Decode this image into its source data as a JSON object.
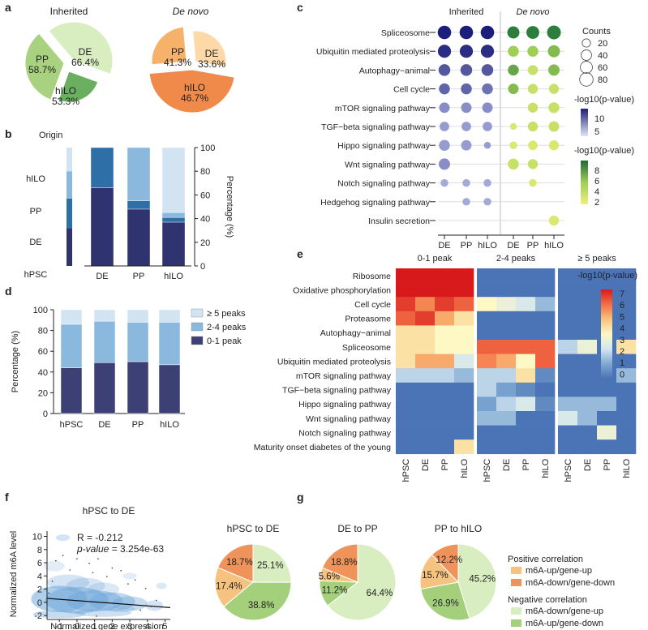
{
  "panel_labels": [
    "a",
    "b",
    "c",
    "d",
    "e",
    "f",
    "g"
  ],
  "colors": {
    "inherited_scale": [
      "#bcc4e8",
      "#1c1f78"
    ],
    "denovo_scale": [
      "#e6ec7a",
      "#1a6b36"
    ],
    "heat": [
      "#4a74b5",
      "#7fa8d2",
      "#d3e6f0",
      "#fdf8c4",
      "#fbc27a",
      "#f36e45",
      "#d7191c"
    ],
    "stack_dark": "#36396e",
    "stack_mid": "#8bb8dd",
    "stack_light": "#d2e3f1"
  },
  "chart_data": [
    {
      "id": "a",
      "type": "pie",
      "groups": [
        {
          "title": "Inherited",
          "italic": false,
          "slices": [
            {
              "label": "PP",
              "value_label": "58.7%",
              "color": "#a8d27f"
            },
            {
              "label": "DE",
              "value_label": "66.4%",
              "color": "#d9eec0"
            },
            {
              "label": "hILO",
              "value_label": "53.3%",
              "color": "#6aae5f"
            }
          ]
        },
        {
          "title": "De novo",
          "italic": true,
          "slices": [
            {
              "label": "PP",
              "value_label": "41.3%",
              "color": "#f6b26b"
            },
            {
              "label": "DE",
              "value_label": "33.6%",
              "color": "#fdd9a8"
            },
            {
              "label": "hILO",
              "value_label": "46.7%",
              "color": "#ef8a4a"
            }
          ]
        }
      ]
    },
    {
      "id": "b",
      "type": "bar",
      "stacked": true,
      "categories": [
        "DE",
        "PP",
        "hILO"
      ],
      "series": [
        {
          "name": "hPSC",
          "color": "#2f3370",
          "values": [
            66,
            48,
            37
          ]
        },
        {
          "name": "DE",
          "color": "#2e6fa8",
          "values": [
            34,
            7,
            4
          ]
        },
        {
          "name": "PP",
          "color": "#8bb8dd",
          "values": [
            0,
            45,
            4
          ]
        },
        {
          "name": "hILO",
          "color": "#d2e3f1",
          "values": [
            0,
            0,
            55
          ]
        }
      ],
      "origin_bar": {
        "label": "Origin",
        "values": [
          20,
          23,
          25,
          32
        ]
      },
      "ylabel": "Percentage (%)",
      "ylim": [
        0,
        100
      ],
      "yticks": [
        0,
        20,
        40,
        60,
        80,
        100
      ],
      "origin_labels": [
        "hILO",
        "PP",
        "DE",
        "hPSC"
      ]
    },
    {
      "id": "c",
      "type": "scatter",
      "subtype": "dot-matrix",
      "columns": [
        "DE",
        "PP",
        "hILO",
        "DE",
        "PP",
        "hILO"
      ],
      "group_titles": [
        "Inherited",
        "De novo"
      ],
      "rows": [
        "Spliceosome",
        "Ubiquitin mediated proteolysis",
        "Autophagy−animal",
        "Cell cycle",
        "mTOR signaling pathway",
        "TGF−beta signaling pathway",
        "Hippo signaling pathway",
        "Wnt signaling pathway",
        "Notch signaling pathway",
        "Hedgehog signaling pathway",
        "Insulin secretion"
      ],
      "counts": [
        [
          80,
          80,
          80,
          60,
          70,
          85
        ],
        [
          75,
          75,
          75,
          45,
          45,
          60
        ],
        [
          55,
          55,
          55,
          45,
          35,
          50
        ],
        [
          45,
          45,
          45,
          40,
          35,
          35
        ],
        [
          40,
          40,
          40,
          0,
          35,
          45
        ],
        [
          30,
          30,
          30,
          10,
          35,
          40
        ],
        [
          45,
          40,
          10,
          15,
          30,
          35
        ],
        [
          50,
          0,
          0,
          45,
          35,
          0
        ],
        [
          15,
          15,
          15,
          0,
          15,
          0
        ],
        [
          0,
          15,
          15,
          0,
          0,
          0
        ],
        [
          0,
          0,
          0,
          0,
          0,
          35
        ]
      ],
      "pvals": [
        [
          12,
          12,
          12,
          9,
          9,
          9
        ],
        [
          11,
          11,
          11,
          5,
          5,
          6
        ],
        [
          8,
          8,
          8,
          7,
          3,
          6
        ],
        [
          7,
          7,
          6,
          6,
          3,
          3
        ],
        [
          4,
          4,
          4,
          0,
          3,
          3
        ],
        [
          3,
          3,
          3,
          2,
          3,
          3
        ],
        [
          3,
          3,
          3,
          2,
          2,
          2
        ],
        [
          4,
          0,
          0,
          3,
          3,
          0
        ],
        [
          2,
          2,
          2,
          0,
          2,
          0
        ],
        [
          0,
          2,
          2,
          0,
          0,
          0
        ],
        [
          0,
          0,
          0,
          0,
          0,
          2
        ]
      ],
      "size_legend": {
        "title": "Counts",
        "values": [
          20,
          40,
          60,
          80
        ]
      },
      "color_legend_inherited": {
        "title": "-log10(p-value)",
        "ticks": [
          10,
          5
        ]
      },
      "color_legend_denovo": {
        "title": "-log10(p-value)",
        "ticks": [
          8,
          6,
          4,
          2
        ]
      }
    },
    {
      "id": "d",
      "type": "bar",
      "stacked": true,
      "categories": [
        "hPSC",
        "DE",
        "PP",
        "hILO"
      ],
      "series": [
        {
          "name": "0-1 peak",
          "color": "#3d4075",
          "values": [
            44,
            49,
            50,
            47
          ]
        },
        {
          "name": "2-4 peaks",
          "color": "#8bb8dd",
          "values": [
            42,
            40,
            38,
            41
          ]
        },
        {
          "name": "≥ 5 peaks",
          "color": "#d2e3f1",
          "values": [
            14,
            11,
            12,
            12
          ]
        }
      ],
      "ylabel": "Percentage (%)",
      "ylim": [
        0,
        100
      ],
      "yticks": [
        0,
        20,
        40,
        60,
        80,
        100
      ]
    },
    {
      "id": "e",
      "type": "heatmap",
      "rows": [
        "Ribosome",
        "Oxidative phosphorylation",
        "Cell cycle",
        "Proteasome",
        "Autophagy−animal",
        "Spliceosome",
        "Ubiquitin mediated proteolysis",
        "mTOR signaling pathway",
        "TGF−beta signaling pathway",
        "Hippo signaling pathway",
        "Wnt signaling pathway",
        "Notch signaling pathway",
        "Maturity onset diabetes of the young"
      ],
      "column_groups": [
        "0-1 peak",
        "2-4 peaks",
        "≥ 5 peaks"
      ],
      "columns": [
        "hPSC",
        "DE",
        "PP",
        "hILO"
      ],
      "values": [
        [
          7,
          7,
          7,
          7,
          0,
          0,
          0,
          0,
          0,
          0,
          0,
          0
        ],
        [
          7,
          7,
          7,
          7,
          0,
          0,
          0,
          0,
          0,
          0,
          0,
          0
        ],
        [
          6.5,
          5.5,
          6.5,
          6,
          3.5,
          3,
          2.5,
          1.5,
          0,
          0,
          0,
          0
        ],
        [
          6,
          6.5,
          5,
          4,
          0,
          0,
          0,
          0,
          0,
          0,
          0,
          0
        ],
        [
          4,
          4,
          3.5,
          3.5,
          0,
          0,
          0,
          0,
          0,
          0,
          0,
          0
        ],
        [
          4,
          4,
          3.5,
          3.5,
          6,
          6,
          6,
          6,
          2,
          3,
          0,
          4
        ],
        [
          4,
          5,
          5,
          2.5,
          5.5,
          5,
          3.5,
          6,
          0,
          0,
          0,
          0
        ],
        [
          2,
          2,
          2,
          1.5,
          2,
          2,
          4,
          0.5,
          0,
          0,
          0,
          1.5
        ],
        [
          0,
          0,
          0,
          0,
          2,
          1,
          0.5,
          0,
          0,
          0,
          0,
          0
        ],
        [
          0,
          0,
          0,
          0,
          1,
          2,
          2.5,
          0.5,
          1.5,
          1.5,
          1.5,
          0
        ],
        [
          0,
          0,
          0,
          0,
          1.5,
          1.5,
          0,
          0,
          2.5,
          1.5,
          0,
          0
        ],
        [
          0,
          0,
          0,
          0,
          0,
          0,
          0,
          0,
          0,
          0,
          3,
          0
        ],
        [
          0,
          0,
          0,
          4,
          0,
          0,
          0,
          0,
          0,
          0,
          0,
          0
        ]
      ],
      "legend_title": "-log10(p-value)",
      "legend_ticks": [
        7,
        6,
        5,
        4,
        3,
        2,
        1,
        0
      ]
    },
    {
      "id": "f",
      "type": "scatter",
      "title": "hPSC to DE",
      "xlabel": "Normalized gene expression",
      "ylabel": "Normalized m6A level",
      "xlim": [
        -1.7,
        5.3
      ],
      "ylim": [
        -2.6,
        10.8
      ],
      "xticks": [
        -1,
        0,
        1,
        2,
        3,
        4,
        5
      ],
      "yticks": [
        -2,
        0,
        2,
        4,
        6,
        8,
        10
      ],
      "annotation_r": "R = -0.212",
      "annotation_p": "p-value = 3.254e-63",
      "fit_line": [
        [
          -1.7,
          0.6
        ],
        [
          5.3,
          -0.8
        ]
      ]
    },
    {
      "id": "g",
      "type": "pie",
      "pies": [
        {
          "title": "hPSC to DE",
          "values": [
            25.1,
            38.8,
            17.4,
            18.7
          ],
          "labels": [
            "25.1%",
            "38.8%",
            "17.4%",
            "18.7%"
          ]
        },
        {
          "title": "DE to PP",
          "values": [
            64.4,
            11.2,
            5.6,
            18.8
          ],
          "labels": [
            "64.4%",
            "11.2%",
            "5.6%",
            "18.8%"
          ]
        },
        {
          "title": "PP to hILO",
          "values": [
            45.2,
            26.9,
            15.7,
            12.2
          ],
          "labels": [
            "45.2%",
            "26.9%",
            "15.7%",
            "12.2%"
          ]
        }
      ],
      "slice_colors": [
        "#d9eec0",
        "#a4cf7b",
        "#f6c27f",
        "#ef935b"
      ],
      "legend": {
        "positive_title": "Positive correlation",
        "negative_title": "Negative correlation",
        "entries": [
          {
            "label": "m6A-up/gene-up",
            "color": "#f6c27f"
          },
          {
            "label": "m6A-down/gene-down",
            "color": "#ef935b"
          },
          {
            "label": "m6A-down/gene-up",
            "color": "#d9eec0"
          },
          {
            "label": "m6A-up/gene-down",
            "color": "#a4cf7b"
          }
        ]
      }
    }
  ]
}
